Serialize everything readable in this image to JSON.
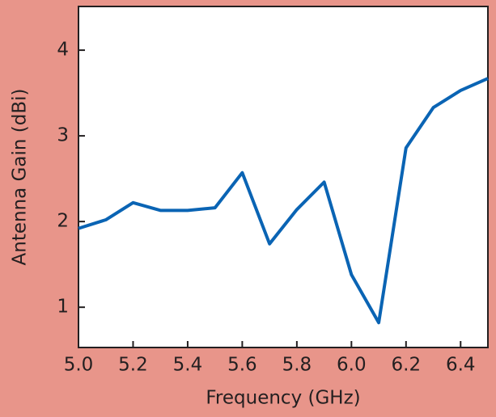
{
  "chart_data": {
    "type": "line",
    "x_label": "Frequency (GHz)",
    "y_label": "Antenna Gain (dBi)",
    "x": [
      5.0,
      5.1,
      5.2,
      5.3,
      5.4,
      5.5,
      5.6,
      5.7,
      5.8,
      5.9,
      6.0,
      6.1,
      6.2,
      6.3,
      6.4,
      6.5
    ],
    "series": [
      {
        "color": "#0a64b4",
        "values": [
          1.92,
          2.02,
          2.22,
          2.13,
          2.13,
          2.16,
          2.57,
          1.74,
          2.14,
          2.46,
          1.38,
          0.82,
          2.86,
          3.33,
          3.53,
          3.67
        ]
      }
    ],
    "xlim": [
      5.0,
      6.5
    ],
    "ylim": [
      0.53,
      4.51
    ],
    "xticks": [
      {
        "value": 5,
        "label": "5.0"
      },
      5.2,
      5.4,
      5.6,
      5.8,
      {
        "value": 6,
        "label": "6.0"
      },
      6.2,
      6.4
    ],
    "yticks": [
      1,
      2,
      3,
      4
    ]
  }
}
